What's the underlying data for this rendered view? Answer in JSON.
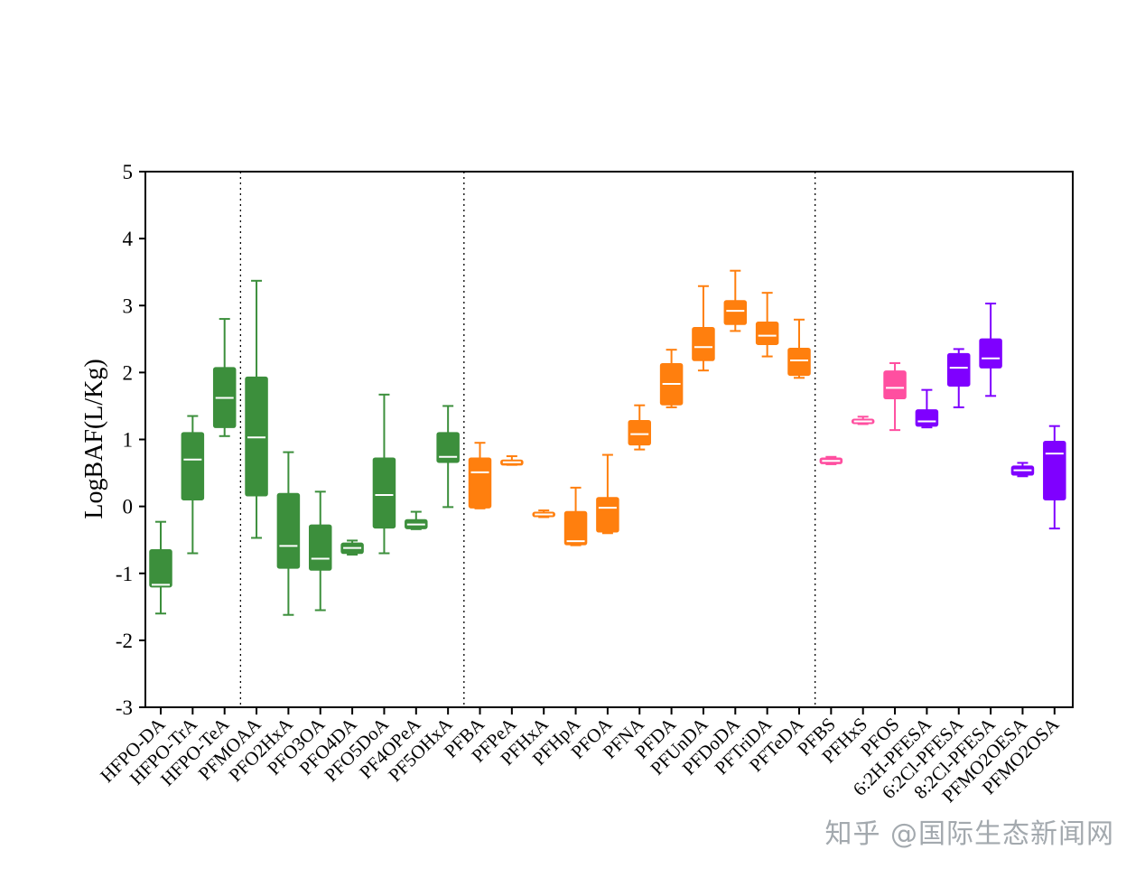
{
  "chart_data": {
    "type": "box",
    "ylabel": "LogBAF(L/Kg)",
    "xlabel": "",
    "ylim": [
      -3,
      5
    ],
    "yticks": [
      -3,
      -2,
      -1,
      0,
      1,
      2,
      3,
      4,
      5
    ],
    "ytick_labels": [
      "-3",
      "-2",
      "-1",
      "0",
      "1",
      "2",
      "3",
      "4",
      "5"
    ],
    "group_separators_after_index": [
      2,
      9,
      20
    ],
    "group_colors": [
      "#3c8f3c",
      "#3c8f3c",
      "#ff7f0e",
      "#ff4fa0",
      "#7f00ff"
    ],
    "categories": [
      "HFPO-DA",
      "HFPO-TrA",
      "HFPO-TeA",
      "PFMOAA",
      "PFO2HxA",
      "PFO3OA",
      "PFO4DA",
      "PFO5DoA",
      "PF4OPeA",
      "PF5OHxA",
      "PFBA",
      "PFPeA",
      "PFHxA",
      "PFHpA",
      "PFOA",
      "PFNA",
      "PFDA",
      "PFUnDA",
      "PFDoDA",
      "PFTriDA",
      "PFTeDA",
      "PFBS",
      "PFHxS",
      "PFOS",
      "6:2H-PFESA",
      "6:2Cl-PFESA",
      "8:2Cl-PFESA",
      "PFMO2OESA",
      "PFMO2OSA"
    ],
    "boxes": [
      {
        "min": -1.6,
        "q1": -1.2,
        "median": -1.17,
        "q3": -0.65,
        "max": -0.23,
        "color": "#3c8f3c"
      },
      {
        "min": -0.7,
        "q1": 0.1,
        "median": 0.7,
        "q3": 1.1,
        "max": 1.35,
        "color": "#3c8f3c"
      },
      {
        "min": 1.05,
        "q1": 1.18,
        "median": 1.62,
        "q3": 2.07,
        "max": 2.8,
        "color": "#3c8f3c"
      },
      {
        "min": -0.47,
        "q1": 0.16,
        "median": 1.03,
        "q3": 1.93,
        "max": 3.37,
        "color": "#3c8f3c"
      },
      {
        "min": -1.62,
        "q1": -0.92,
        "median": -0.59,
        "q3": 0.19,
        "max": 0.81,
        "color": "#3c8f3c"
      },
      {
        "min": -1.55,
        "q1": -0.95,
        "median": -0.78,
        "q3": -0.28,
        "max": 0.22,
        "color": "#3c8f3c"
      },
      {
        "min": -0.72,
        "q1": -0.7,
        "median": -0.62,
        "q3": -0.55,
        "max": -0.51,
        "color": "#3c8f3c"
      },
      {
        "min": -0.7,
        "q1": -0.32,
        "median": 0.17,
        "q3": 0.72,
        "max": 1.67,
        "color": "#3c8f3c"
      },
      {
        "min": -0.34,
        "q1": -0.33,
        "median": -0.27,
        "q3": -0.2,
        "max": -0.08,
        "color": "#3c8f3c"
      },
      {
        "min": -0.01,
        "q1": 0.66,
        "median": 0.74,
        "q3": 1.1,
        "max": 1.5,
        "color": "#3c8f3c"
      },
      {
        "min": -0.03,
        "q1": -0.02,
        "median": 0.51,
        "q3": 0.72,
        "max": 0.95,
        "color": "#ff7f0e"
      },
      {
        "min": 0.62,
        "q1": 0.62,
        "median": 0.66,
        "q3": 0.69,
        "max": 0.75,
        "color": "#ff7f0e"
      },
      {
        "min": -0.16,
        "q1": -0.15,
        "median": -0.12,
        "q3": -0.09,
        "max": -0.06,
        "color": "#ff7f0e"
      },
      {
        "min": -0.58,
        "q1": -0.57,
        "median": -0.52,
        "q3": -0.08,
        "max": 0.28,
        "color": "#ff7f0e"
      },
      {
        "min": -0.4,
        "q1": -0.38,
        "median": -0.02,
        "q3": 0.13,
        "max": 0.77,
        "color": "#ff7f0e"
      },
      {
        "min": 0.85,
        "q1": 0.92,
        "median": 1.08,
        "q3": 1.28,
        "max": 1.51,
        "color": "#ff7f0e"
      },
      {
        "min": 1.48,
        "q1": 1.52,
        "median": 1.83,
        "q3": 2.13,
        "max": 2.34,
        "color": "#ff7f0e"
      },
      {
        "min": 2.03,
        "q1": 2.18,
        "median": 2.38,
        "q3": 2.67,
        "max": 3.29,
        "color": "#ff7f0e"
      },
      {
        "min": 2.62,
        "q1": 2.72,
        "median": 2.92,
        "q3": 3.07,
        "max": 3.52,
        "color": "#ff7f0e"
      },
      {
        "min": 2.24,
        "q1": 2.42,
        "median": 2.55,
        "q3": 2.75,
        "max": 3.19,
        "color": "#ff7f0e"
      },
      {
        "min": 1.92,
        "q1": 1.96,
        "median": 2.18,
        "q3": 2.36,
        "max": 2.79,
        "color": "#ff7f0e"
      },
      {
        "min": 0.63,
        "q1": 0.64,
        "median": 0.68,
        "q3": 0.72,
        "max": 0.74,
        "color": "#ff4fa0"
      },
      {
        "min": 1.23,
        "q1": 1.24,
        "median": 1.27,
        "q3": 1.3,
        "max": 1.34,
        "color": "#ff4fa0"
      },
      {
        "min": 1.14,
        "q1": 1.61,
        "median": 1.77,
        "q3": 2.02,
        "max": 2.14,
        "color": "#ff4fa0"
      },
      {
        "min": 1.18,
        "q1": 1.2,
        "median": 1.27,
        "q3": 1.44,
        "max": 1.74,
        "color": "#7f00ff"
      },
      {
        "min": 1.48,
        "q1": 1.8,
        "median": 2.07,
        "q3": 2.28,
        "max": 2.35,
        "color": "#7f00ff"
      },
      {
        "min": 1.65,
        "q1": 2.07,
        "median": 2.21,
        "q3": 2.5,
        "max": 3.03,
        "color": "#7f00ff"
      },
      {
        "min": 0.45,
        "q1": 0.47,
        "median": 0.54,
        "q3": 0.6,
        "max": 0.65,
        "color": "#7f00ff"
      },
      {
        "min": -0.33,
        "q1": 0.1,
        "median": 0.79,
        "q3": 0.97,
        "max": 1.2,
        "color": "#7f00ff"
      }
    ]
  },
  "watermark": "知乎 @国际生态新闻网"
}
